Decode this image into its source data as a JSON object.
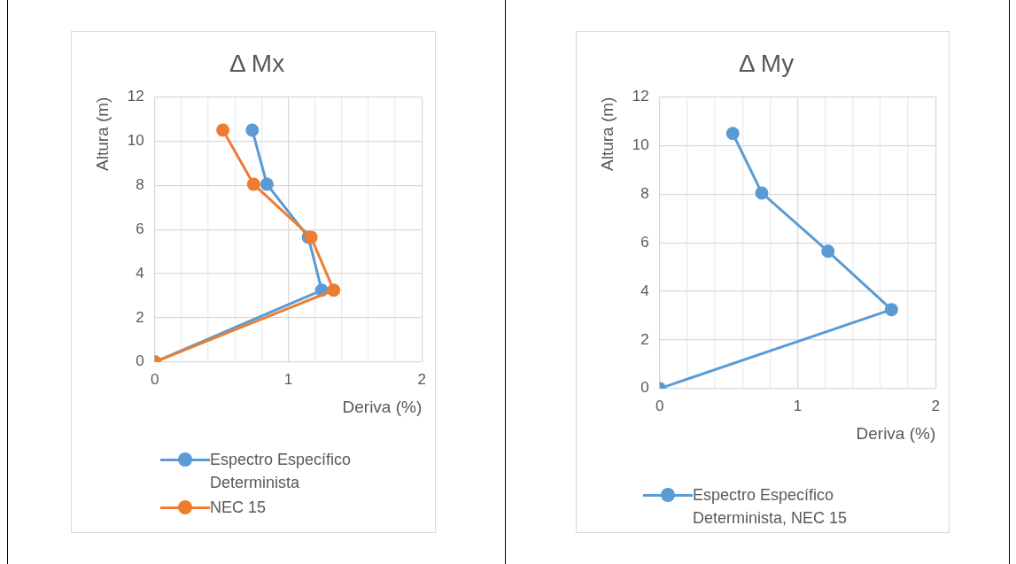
{
  "chart_data": [
    {
      "type": "line",
      "title": "Δ Mx",
      "xlabel": "Deriva (%)",
      "ylabel": "Altura (m)",
      "xlim": [
        0,
        2
      ],
      "xticks": [
        0,
        {
          "value": 0.2,
          "label": null
        },
        {
          "value": 0.4,
          "label": null
        },
        {
          "value": 0.6,
          "label": null
        },
        {
          "value": 0.8,
          "label": null
        },
        1,
        {
          "value": 1.2,
          "label": null
        },
        {
          "value": 1.4,
          "label": null
        },
        {
          "value": 1.6,
          "label": null
        },
        {
          "value": 1.8,
          "label": null
        },
        2
      ],
      "ylim": [
        0,
        12
      ],
      "yticks": [
        0,
        2,
        4,
        6,
        8,
        10,
        12
      ],
      "grid": true,
      "legend": "bottom",
      "marker": "circle",
      "line_style": "solid",
      "series": [
        {
          "name": "Espectro Específico Determinista",
          "color": "#5b9bd5",
          "x": [
            0.73,
            0.84,
            1.15,
            1.25,
            0
          ],
          "values": [
            10.5,
            8.05,
            5.65,
            3.25,
            0
          ]
        },
        {
          "name": "NEC 15",
          "color": "#ed7d31",
          "x": [
            0.51,
            0.74,
            1.17,
            1.34,
            0
          ],
          "values": [
            10.5,
            8.05,
            5.65,
            3.25,
            0
          ]
        }
      ]
    },
    {
      "type": "line",
      "title": "Δ My",
      "xlabel": "Deriva (%)",
      "ylabel": "Altura (m)",
      "xlim": [
        0,
        2
      ],
      "xticks": [
        0,
        {
          "value": 0.2,
          "label": null
        },
        {
          "value": 0.4,
          "label": null
        },
        {
          "value": 0.6,
          "label": null
        },
        {
          "value": 0.8,
          "label": null
        },
        1,
        {
          "value": 1.2,
          "label": null
        },
        {
          "value": 1.4,
          "label": null
        },
        {
          "value": 1.6,
          "label": null
        },
        {
          "value": 1.8,
          "label": null
        },
        2
      ],
      "ylim": [
        0,
        12
      ],
      "yticks": [
        0,
        2,
        4,
        6,
        8,
        10,
        12
      ],
      "grid": true,
      "legend": "bottom",
      "marker": "circle",
      "line_style": "solid",
      "series": [
        {
          "name": "Espectro Específico Determinista, NEC 15",
          "color": "#5b9bd5",
          "x": [
            0.53,
            0.74,
            1.22,
            1.68,
            0
          ],
          "values": [
            10.5,
            8.05,
            5.65,
            3.25,
            0
          ]
        }
      ]
    }
  ]
}
